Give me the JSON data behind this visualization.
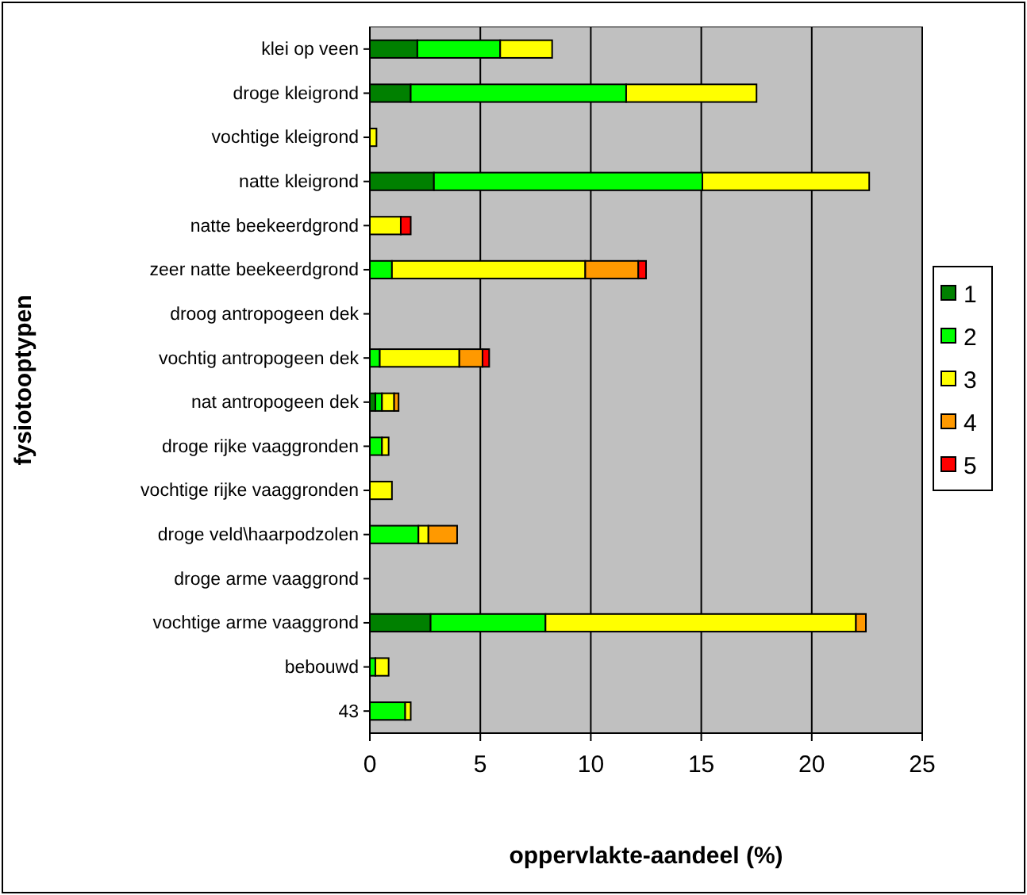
{
  "chart_data": {
    "type": "bar",
    "orientation": "horizontal",
    "stacked": true,
    "xlabel": "oppervlakte-aandeel (%)",
    "ylabel": "fysiotooptypen",
    "categories": [
      "klei op veen",
      "droge kleigrond",
      "vochtige kleigrond",
      "natte kleigrond",
      "natte beekeerdgrond",
      "zeer natte beekeerdgrond",
      "droog antropogeen dek",
      "vochtig antropogeen dek",
      "nat antropogeen dek",
      "droge rijke vaaggronden",
      "vochtige rijke vaaggronden",
      "droge veld\\haarpodzolen",
      "droge arme vaaggrond",
      "vochtige arme vaaggrond",
      "bebouwd",
      "43"
    ],
    "series": [
      {
        "name": "1",
        "color": "#008000",
        "values": [
          2.15,
          1.85,
          0,
          2.9,
          0,
          0,
          0,
          0,
          0.25,
          0,
          0,
          null,
          0,
          2.75,
          0,
          0
        ]
      },
      {
        "name": "2",
        "color": "#00ff00",
        "values": [
          3.75,
          9.75,
          0,
          12.15,
          0,
          1.0,
          0,
          0.45,
          0.3,
          0.55,
          0,
          2.2,
          0,
          5.2,
          0.25,
          1.6
        ]
      },
      {
        "name": "3",
        "color": "#ffff00",
        "values": [
          2.35,
          5.9,
          0.3,
          7.55,
          1.4,
          8.75,
          0,
          3.6,
          0.55,
          0.3,
          1.0,
          0.45,
          0,
          14.05,
          0.6,
          0.25
        ]
      },
      {
        "name": "4",
        "color": "#ff9900",
        "values": [
          0,
          0,
          0,
          0,
          0,
          2.4,
          0,
          1.05,
          0.2,
          0,
          0,
          1.3,
          0,
          0.45,
          0,
          0
        ]
      },
      {
        "name": "5",
        "color": "#ff0000",
        "values": [
          0,
          0,
          0,
          0,
          0.45,
          0.35,
          0,
          0.3,
          0,
          0,
          0,
          0,
          0,
          0,
          0,
          0
        ]
      }
    ],
    "xlim": [
      0,
      25
    ],
    "xticks": [
      0,
      5,
      10,
      15,
      20,
      25
    ],
    "grid": "x",
    "legend": "right"
  }
}
